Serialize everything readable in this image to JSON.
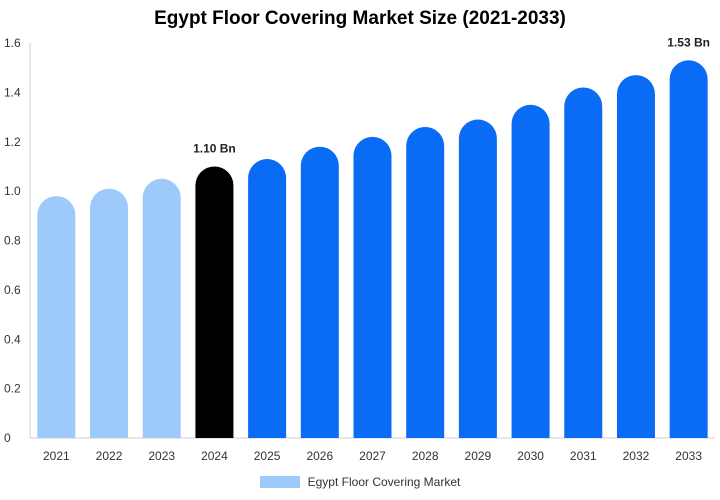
{
  "chart_data": {
    "type": "bar",
    "title": "Egypt Floor Covering Market Size (2021-2033)",
    "categories": [
      "2021",
      "2022",
      "2023",
      "2024",
      "2025",
      "2026",
      "2027",
      "2028",
      "2029",
      "2030",
      "2031",
      "2032",
      "2033"
    ],
    "series": [
      {
        "name": "Egypt Floor Covering Market",
        "values": [
          0.98,
          1.01,
          1.05,
          1.1,
          1.13,
          1.18,
          1.22,
          1.26,
          1.29,
          1.35,
          1.42,
          1.47,
          1.53
        ]
      }
    ],
    "data_labels": {
      "2024": "1.10 Bn",
      "2033": "1.53 Bn"
    },
    "ylim": [
      0,
      1.6
    ],
    "yticks": [
      0,
      0.2,
      0.4,
      0.6,
      0.8,
      1.0,
      1.2,
      1.4,
      1.6
    ],
    "ytick_labels": [
      "0",
      "0.2",
      "0.4",
      "0.6",
      "0.8",
      "1.0",
      "1.2",
      "1.4",
      "1.6"
    ],
    "grid": false,
    "legend_position": "bottom",
    "colors": {
      "historical": "#9ec9fb",
      "current": "#000000",
      "forecast": "#0a6cf5"
    },
    "bar_color_groups": [
      "historical",
      "historical",
      "historical",
      "current",
      "forecast",
      "forecast",
      "forecast",
      "forecast",
      "forecast",
      "forecast",
      "forecast",
      "forecast",
      "forecast"
    ]
  }
}
